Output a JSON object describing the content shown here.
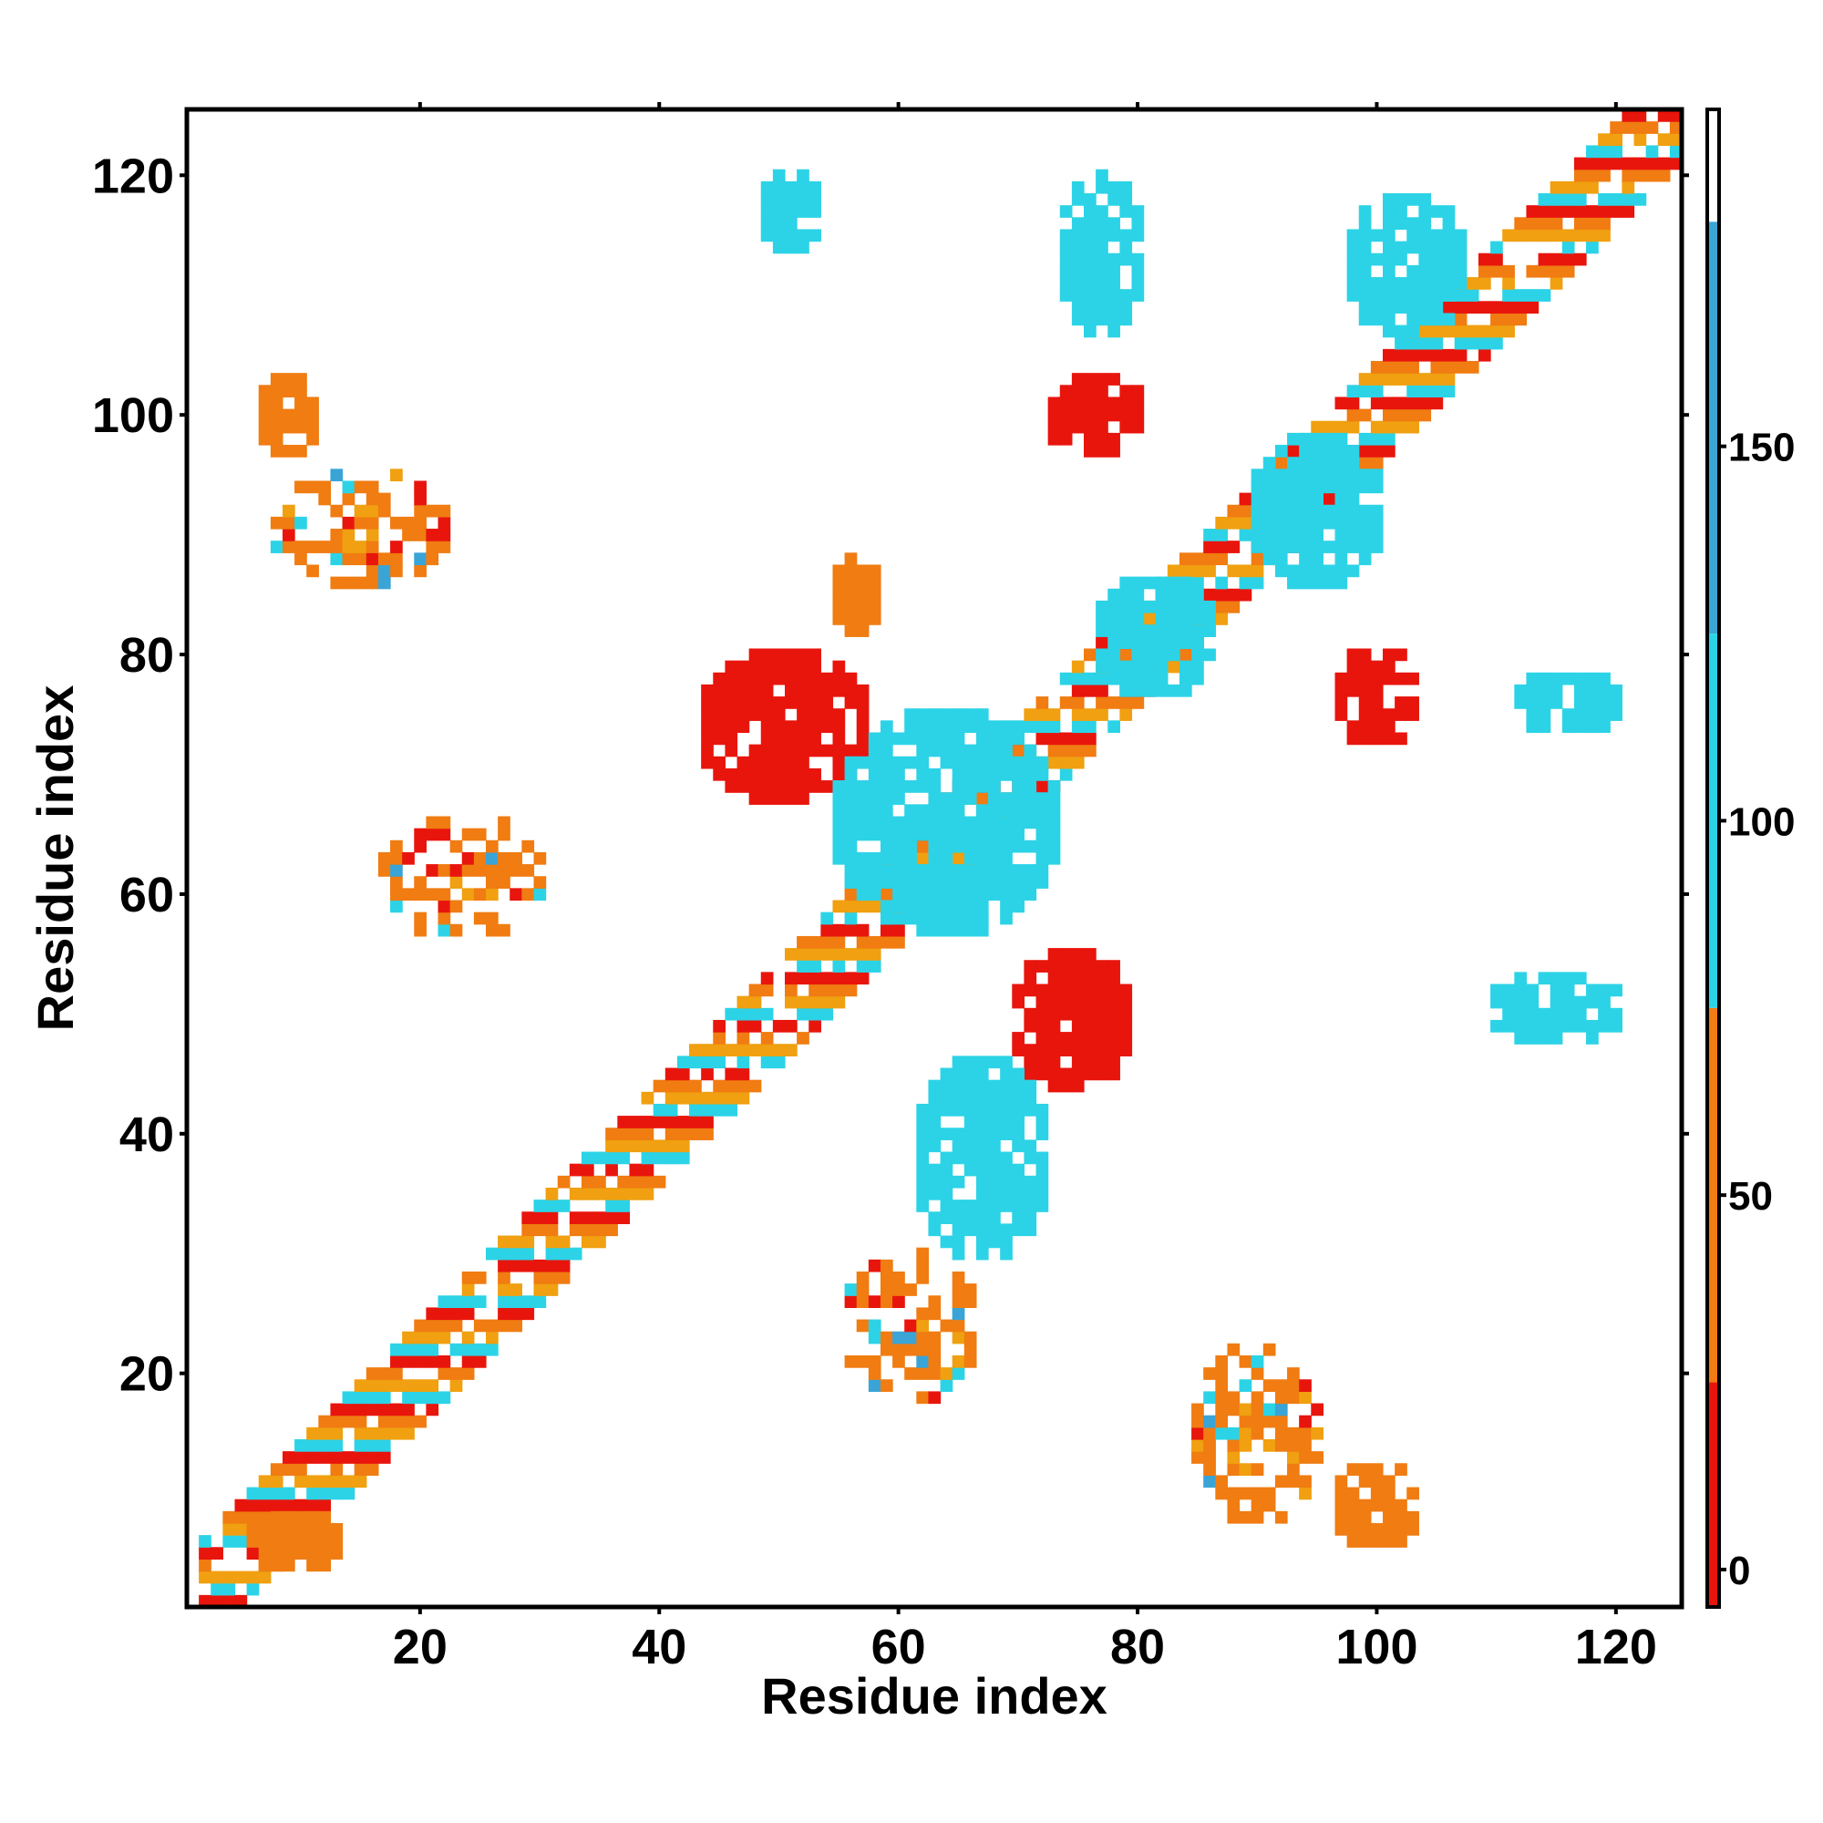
{
  "chart_data": {
    "type": "heatmap",
    "title": "",
    "xlabel": "Residue index",
    "ylabel": "Residue index",
    "xlim": [
      1,
      125
    ],
    "ylim": [
      1,
      125
    ],
    "x_ticks": [
      20,
      40,
      60,
      80,
      100,
      120
    ],
    "y_ticks": [
      20,
      40,
      60,
      80,
      100,
      120
    ],
    "colorbar": {
      "range": [
        -5,
        195
      ],
      "ticks": [
        0,
        50,
        100,
        150
      ],
      "bands": [
        {
          "from": -5,
          "to": 25,
          "color": "#e8150d"
        },
        {
          "from": 25,
          "to": 75,
          "color": "#f07c12"
        },
        {
          "from": 75,
          "to": 125,
          "color": "#2cd3e6"
        },
        {
          "from": 125,
          "to": 180,
          "color": "#3aa4d6"
        },
        {
          "from": 180,
          "to": 195,
          "color": "#ffffff"
        }
      ]
    },
    "regions": [
      {
        "kind": "diagonal",
        "from": 2,
        "to": 125,
        "half_width": 4,
        "colors": [
          "#f07c12",
          "#e8150d",
          "#2cd3e6",
          "#f0a010"
        ]
      },
      {
        "kind": "block",
        "x": [
          7,
          11
        ],
        "y": [
          97,
          103
        ],
        "color": "#f07c12"
      },
      {
        "kind": "block",
        "x": [
          8,
          22
        ],
        "y": [
          86,
          95
        ],
        "color": "#f07c12",
        "mixed": true
      },
      {
        "kind": "block",
        "x": [
          6,
          13
        ],
        "y": [
          4,
          8
        ],
        "color": "#f07c12"
      },
      {
        "kind": "block",
        "x": [
          73,
          80
        ],
        "y": [
          97,
          103
        ],
        "color": "#e8150d"
      },
      {
        "kind": "block",
        "x": [
          44,
          57
        ],
        "y": [
          68,
          80
        ],
        "color": "#e8150d"
      },
      {
        "kind": "block",
        "x": [
          55,
          58
        ],
        "y": [
          82,
          88
        ],
        "color": "#f07c12"
      },
      {
        "kind": "block",
        "x": [
          97,
          103
        ],
        "y": [
          73,
          80
        ],
        "color": "#e8150d"
      },
      {
        "kind": "block",
        "x": [
          70,
          79
        ],
        "y": [
          44,
          55
        ],
        "color": "#e8150d"
      },
      {
        "kind": "block",
        "x": [
          97,
          103
        ],
        "y": [
          6,
          12
        ],
        "color": "#f07c12"
      },
      {
        "kind": "block",
        "x": [
          85,
          95
        ],
        "y": [
          8,
          22
        ],
        "color": "#f07c12",
        "mixed": true
      },
      {
        "kind": "block",
        "x": [
          56,
          66
        ],
        "y": [
          18,
          30
        ],
        "color": "#f07c12",
        "mixed": true
      },
      {
        "kind": "block",
        "x": [
          17,
          30
        ],
        "y": [
          57,
          66
        ],
        "color": "#f07c12",
        "mixed": true
      },
      {
        "kind": "block",
        "x": [
          49,
          53
        ],
        "y": [
          114,
          120
        ],
        "color": "#2cd3e6"
      },
      {
        "kind": "block",
        "x": [
          74,
          80
        ],
        "y": [
          107,
          120
        ],
        "color": "#2cd3e6"
      },
      {
        "kind": "block",
        "x": [
          98,
          107
        ],
        "y": [
          107,
          118
        ],
        "color": "#2cd3e6"
      },
      {
        "kind": "block",
        "x": [
          90,
          100
        ],
        "y": [
          86,
          98
        ],
        "color": "#2cd3e6"
      },
      {
        "kind": "block",
        "x": [
          77,
          86
        ],
        "y": [
          77,
          86
        ],
        "color": "#2cd3e6"
      },
      {
        "kind": "block",
        "x": [
          55,
          73
        ],
        "y": [
          57,
          75
        ],
        "color": "#2cd3e6"
      },
      {
        "kind": "block",
        "x": [
          110,
          120
        ],
        "y": [
          48,
          53
        ],
        "color": "#2cd3e6"
      },
      {
        "kind": "block",
        "x": [
          112,
          120
        ],
        "y": [
          74,
          78
        ],
        "color": "#2cd3e6"
      },
      {
        "kind": "block",
        "x": [
          62,
          72
        ],
        "y": [
          30,
          46
        ],
        "color": "#2cd3e6"
      }
    ]
  }
}
